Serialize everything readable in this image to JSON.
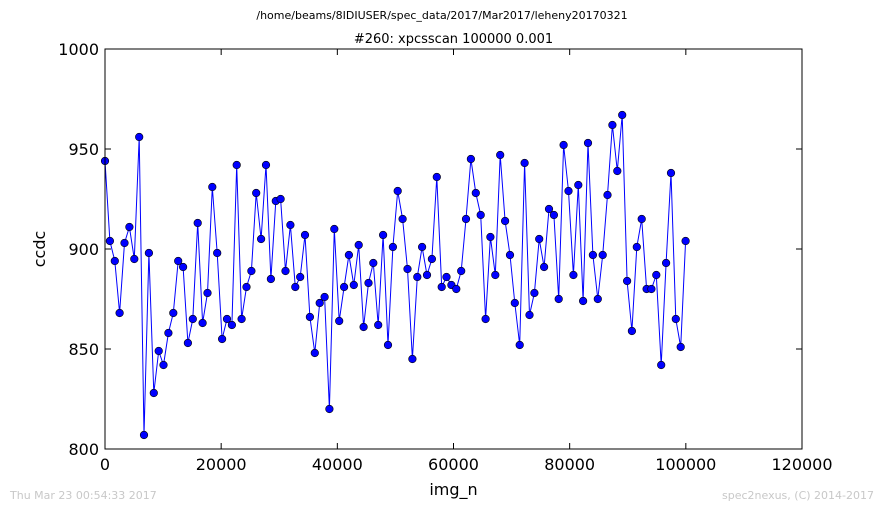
{
  "suptitle": "/home/beams/8IDIUSER/spec_data/2017/Mar2017/leheny20170321",
  "footer": {
    "left": "Thu Mar 23 00:54:33 2017",
    "right": "spec2nexus, (C) 2014-2017"
  },
  "colors": {
    "series": "#0000ff",
    "axes": "#000000",
    "footer": "#c8c8c8"
  },
  "chart_data": {
    "type": "line",
    "title": "#260: xpcsscan 100000 0.001",
    "xlabel": "img_n",
    "ylabel": "ccdc",
    "xlim": [
      0,
      120000
    ],
    "ylim": [
      800,
      1000
    ],
    "xticks": [
      0,
      20000,
      40000,
      60000,
      80000,
      100000,
      120000
    ],
    "yticks": [
      800,
      850,
      900,
      950,
      1000
    ],
    "xtick_labels": [
      "0",
      "20000",
      "40000",
      "60000",
      "80000",
      "100000",
      "120000"
    ],
    "ytick_labels": [
      "800",
      "850",
      "900",
      "950",
      "1000"
    ],
    "grid": false,
    "legend": "none",
    "marker": "circle",
    "series": [
      {
        "x": [
          0,
          840,
          1680,
          2520,
          3360,
          4200,
          5040,
          5880,
          6720,
          7560,
          8400,
          9240,
          10080,
          10920,
          11760,
          12600,
          13440,
          14280,
          15120,
          15960,
          16800,
          17640,
          18480,
          19320,
          20160,
          21000,
          21840,
          22680,
          23520,
          24360,
          25200,
          26040,
          26880,
          27720,
          28560,
          29400,
          30240,
          31080,
          31920,
          32760,
          33600,
          34440,
          35280,
          36120,
          36960,
          37800,
          38640,
          39480,
          40320,
          41160,
          42000,
          42840,
          43680,
          44520,
          45360,
          46200,
          47040,
          47880,
          48720,
          49560,
          50400,
          51240,
          52080,
          52920,
          53760,
          54600,
          55440,
          56280,
          57120,
          57960,
          58800,
          59640,
          60480,
          61320,
          62160,
          63000,
          63840,
          64680,
          65520,
          66360,
          67200,
          68040,
          68880,
          69720,
          70560,
          71400,
          72240,
          73080,
          73920,
          74760,
          75600,
          76440,
          77280,
          78120,
          78960,
          79800,
          80640,
          81480,
          82320,
          83160,
          84000,
          84840,
          85680,
          86520,
          87360,
          88200,
          89040,
          89880,
          90720,
          91560,
          92400,
          93240,
          94080,
          94920,
          95760,
          96600,
          97440,
          98280,
          99120,
          99960
        ],
        "y": [
          944,
          904,
          894,
          868,
          903,
          911,
          895,
          956,
          807,
          898,
          828,
          849,
          842,
          858,
          868,
          894,
          891,
          853,
          865,
          913,
          863,
          878,
          931,
          898,
          855,
          865,
          862,
          942,
          865,
          881,
          889,
          928,
          905,
          942,
          885,
          924,
          925,
          889,
          912,
          881,
          886,
          907,
          866,
          848,
          873,
          876,
          820,
          910,
          864,
          881,
          897,
          882,
          902,
          861,
          883,
          893,
          862,
          907,
          852,
          901,
          929,
          915,
          890,
          845,
          886,
          901,
          887,
          895,
          936,
          881,
          886,
          882,
          880,
          889,
          915,
          945,
          928,
          917,
          865,
          906,
          887,
          947,
          914,
          897,
          873,
          852,
          943,
          867,
          878,
          905,
          891,
          920,
          917,
          875,
          952,
          929,
          887,
          932,
          874,
          953,
          897,
          875,
          897,
          927,
          962,
          939,
          967,
          884,
          859,
          901,
          915,
          880,
          880,
          887,
          842,
          893,
          938,
          865,
          851,
          904
        ]
      }
    ]
  }
}
